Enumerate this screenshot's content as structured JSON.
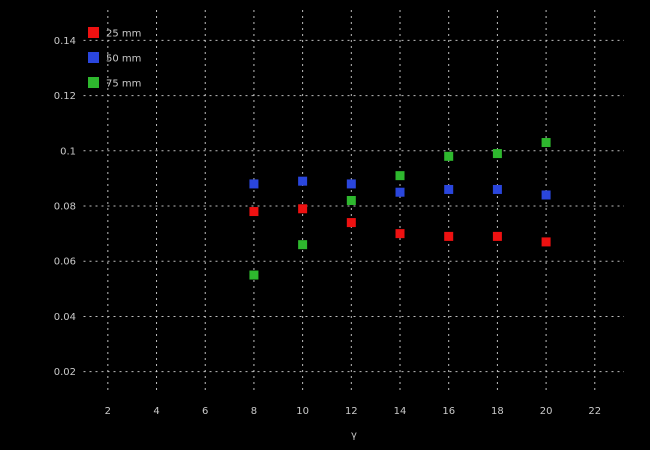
{
  "chart_data": {
    "type": "scatter",
    "title": "",
    "xlabel": "γ",
    "ylabel": "",
    "background_color": "#000000",
    "text_color": "#c9c9c9",
    "grid": "on",
    "grid_style": "dashed",
    "grid_color": "#e0e0e0",
    "marker": "square",
    "legend_position": "top-left",
    "xlim": [
      1,
      23.2
    ],
    "ylim": [
      0.013,
      0.151
    ],
    "xticks": {
      "values": [
        2,
        4,
        6,
        8,
        10,
        12,
        14,
        16,
        18,
        20,
        22
      ],
      "labels": [
        "2",
        "4",
        "6",
        "8",
        "10",
        "12",
        "14",
        "16",
        "18",
        "20",
        "22"
      ]
    },
    "yticks": {
      "values": [
        0.14,
        0.12,
        0.1,
        0.08,
        0.06,
        0.04,
        0.02
      ],
      "labels": [
        "0.14",
        "0.12",
        "0.1",
        "0.08",
        "0.06",
        "0.04",
        "0.02"
      ]
    },
    "x": [
      8,
      10,
      12,
      14,
      16,
      18,
      20
    ],
    "series": [
      {
        "name": "25 mm",
        "color": "#ee1111",
        "values": [
          0.078,
          0.079,
          0.074,
          0.07,
          0.069,
          0.069,
          0.067
        ]
      },
      {
        "name": "50 mm",
        "color": "#2a46dd",
        "values": [
          0.088,
          0.089,
          0.088,
          0.085,
          0.086,
          0.086,
          0.084
        ]
      },
      {
        "name": "75 mm",
        "color": "#2eb82e",
        "values": [
          0.055,
          0.066,
          0.082,
          0.091,
          0.098,
          0.099,
          0.103
        ]
      }
    ]
  }
}
